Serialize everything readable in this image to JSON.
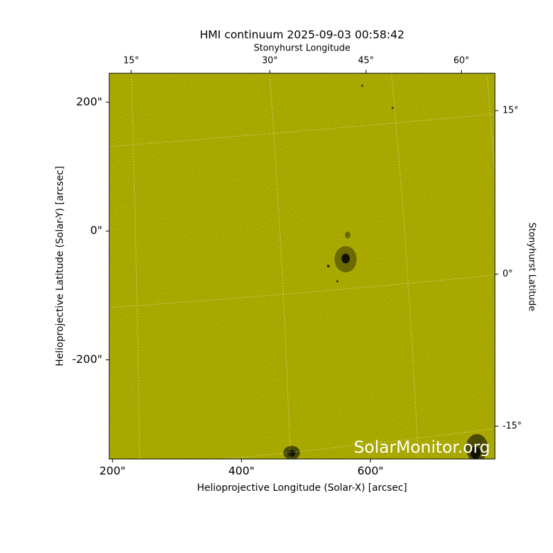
{
  "chart_data": {
    "type": "image",
    "title": "HMI continuum 2025-09-03 00:58:42",
    "xlabel": "Helioprojective Longitude (Solar-X) [arcsec]",
    "ylabel": "Helioprojective Latitude (Solar-Y) [arcsec]",
    "x2label": "Stonyhurst Longitude",
    "y2label": "Stonyhurst Latitude",
    "watermark": "SolarMonitor.org",
    "color": "#cccc00",
    "xlim": [
      195,
      793
    ],
    "ylim": [
      -354,
      245
    ],
    "xticks": [
      {
        "value": 200,
        "label": "200\""
      },
      {
        "value": 400,
        "label": "400\""
      },
      {
        "value": 600,
        "label": "600\""
      }
    ],
    "yticks": [
      {
        "value": 200,
        "label": "200\""
      },
      {
        "value": 0,
        "label": "0\""
      },
      {
        "value": -200,
        "label": "-200\""
      }
    ],
    "x2ticks": [
      {
        "value": 229,
        "label": "15°"
      },
      {
        "value": 444,
        "label": "30°"
      },
      {
        "value": 593,
        "label": "45°"
      },
      {
        "value": 741,
        "label": "60°"
      }
    ],
    "y2ticks": [
      {
        "value": 187,
        "label": "15°"
      },
      {
        "value": -67,
        "label": "0°"
      },
      {
        "value": -303,
        "label": "-15°"
      }
    ]
  }
}
